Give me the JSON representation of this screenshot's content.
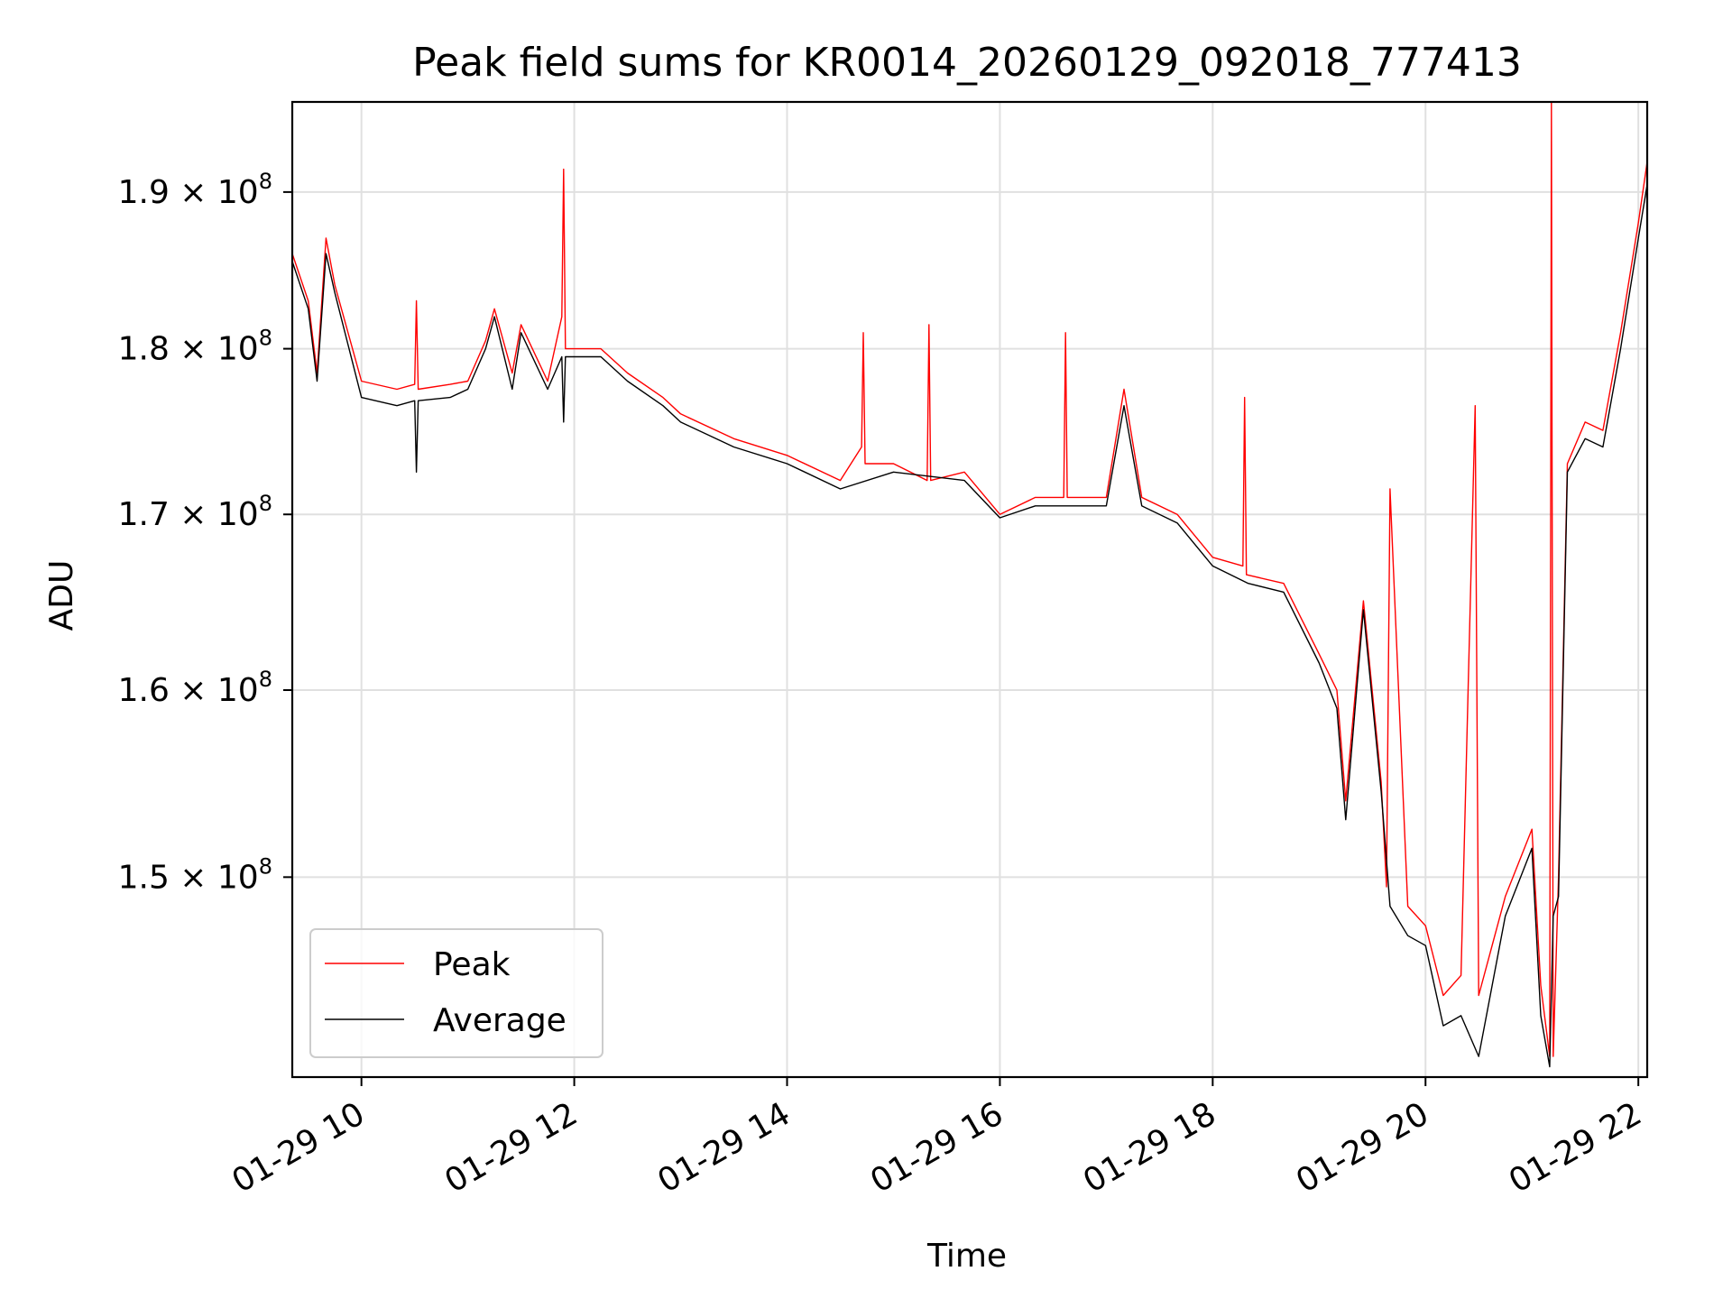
{
  "chart_data": {
    "type": "line",
    "title": "Peak field sums for KR0014_20260129_092018_777413",
    "xlabel": "Time",
    "ylabel": "ADU",
    "y_scale": "log",
    "grid": true,
    "legend_position": "lower-left",
    "xlim": [
      "2026-01-29 09:21",
      "2026-01-29 22:05"
    ],
    "ylim": [
      140000000,
      196000000
    ],
    "x_ticks": [
      {
        "value": "2026-01-29 10:00",
        "label": "01-29 10"
      },
      {
        "value": "2026-01-29 12:00",
        "label": "01-29 12"
      },
      {
        "value": "2026-01-29 14:00",
        "label": "01-29 14"
      },
      {
        "value": "2026-01-29 16:00",
        "label": "01-29 16"
      },
      {
        "value": "2026-01-29 18:00",
        "label": "01-29 18"
      },
      {
        "value": "2026-01-29 20:00",
        "label": "01-29 20"
      },
      {
        "value": "2026-01-29 22:00",
        "label": "01-29 22"
      }
    ],
    "y_ticks": [
      {
        "value": 150000000,
        "mantissa": "1.5",
        "exponent": "8"
      },
      {
        "value": 160000000,
        "mantissa": "1.6",
        "exponent": "8"
      },
      {
        "value": 170000000,
        "mantissa": "1.7",
        "exponent": "8"
      },
      {
        "value": 180000000,
        "mantissa": "1.8",
        "exponent": "8"
      },
      {
        "value": 190000000,
        "mantissa": "1.9",
        "exponent": "8"
      }
    ],
    "series": [
      {
        "name": "Peak",
        "color": "#ff0000",
        "x": [
          "2026-01-29 09:21",
          "2026-01-29 09:30",
          "2026-01-29 09:35",
          "2026-01-29 09:40",
          "2026-01-29 09:45",
          "2026-01-29 10:00",
          "2026-01-29 10:20",
          "2026-01-29 10:30",
          "2026-01-29 10:31",
          "2026-01-29 10:32",
          "2026-01-29 10:50",
          "2026-01-29 11:00",
          "2026-01-29 11:10",
          "2026-01-29 11:15",
          "2026-01-29 11:25",
          "2026-01-29 11:30",
          "2026-01-29 11:45",
          "2026-01-29 11:53",
          "2026-01-29 11:54",
          "2026-01-29 11:55",
          "2026-01-29 12:15",
          "2026-01-29 12:30",
          "2026-01-29 12:50",
          "2026-01-29 13:00",
          "2026-01-29 13:30",
          "2026-01-29 14:00",
          "2026-01-29 14:30",
          "2026-01-29 14:42",
          "2026-01-29 14:43",
          "2026-01-29 14:44",
          "2026-01-29 15:00",
          "2026-01-29 15:19",
          "2026-01-29 15:20",
          "2026-01-29 15:21",
          "2026-01-29 15:40",
          "2026-01-29 16:00",
          "2026-01-29 16:20",
          "2026-01-29 16:36",
          "2026-01-29 16:37",
          "2026-01-29 16:38",
          "2026-01-29 17:00",
          "2026-01-29 17:10",
          "2026-01-29 17:20",
          "2026-01-29 17:40",
          "2026-01-29 18:00",
          "2026-01-29 18:17",
          "2026-01-29 18:18",
          "2026-01-29 18:19",
          "2026-01-29 18:40",
          "2026-01-29 19:00",
          "2026-01-29 19:10",
          "2026-01-29 19:15",
          "2026-01-29 19:25",
          "2026-01-29 19:35",
          "2026-01-29 19:38",
          "2026-01-29 19:40",
          "2026-01-29 19:50",
          "2026-01-29 20:00",
          "2026-01-29 20:10",
          "2026-01-29 20:20",
          "2026-01-29 20:28",
          "2026-01-29 20:30",
          "2026-01-29 20:45",
          "2026-01-29 21:00",
          "2026-01-29 21:05",
          "2026-01-29 21:10",
          "2026-01-29 21:11",
          "2026-01-29 21:12",
          "2026-01-29 21:15",
          "2026-01-29 21:20",
          "2026-01-29 21:30",
          "2026-01-29 21:40",
          "2026-01-29 21:50",
          "2026-01-29 22:00",
          "2026-01-29 22:05"
        ],
        "values": [
          186000000,
          183000000,
          178500000,
          187000000,
          184000000,
          178000000,
          177500000,
          177800000,
          183000000,
          177500000,
          177800000,
          178000000,
          180500000,
          182500000,
          178500000,
          181500000,
          178000000,
          182000000,
          191500000,
          180000000,
          180000000,
          178500000,
          177000000,
          176000000,
          174500000,
          173500000,
          172000000,
          174000000,
          181000000,
          173000000,
          173000000,
          172000000,
          181500000,
          172000000,
          172500000,
          170000000,
          171000000,
          171000000,
          181000000,
          171000000,
          171000000,
          177500000,
          171000000,
          170000000,
          167500000,
          167000000,
          177000000,
          166500000,
          166000000,
          162000000,
          160000000,
          154000000,
          165000000,
          155000000,
          149500000,
          171500000,
          148500000,
          147500000,
          144000000,
          145000000,
          176500000,
          144000000,
          149000000,
          152500000,
          144500000,
          141000000,
          196000000,
          141000000,
          150000000,
          173000000,
          175500000,
          175000000,
          181000000,
          188000000,
          192000000
        ]
      },
      {
        "name": "Average",
        "color": "#000000",
        "x": [
          "2026-01-29 09:21",
          "2026-01-29 09:30",
          "2026-01-29 09:35",
          "2026-01-29 09:40",
          "2026-01-29 09:45",
          "2026-01-29 10:00",
          "2026-01-29 10:20",
          "2026-01-29 10:30",
          "2026-01-29 10:31",
          "2026-01-29 10:32",
          "2026-01-29 10:50",
          "2026-01-29 11:00",
          "2026-01-29 11:10",
          "2026-01-29 11:15",
          "2026-01-29 11:25",
          "2026-01-29 11:30",
          "2026-01-29 11:45",
          "2026-01-29 11:53",
          "2026-01-29 11:54",
          "2026-01-29 11:55",
          "2026-01-29 12:15",
          "2026-01-29 12:30",
          "2026-01-29 12:50",
          "2026-01-29 13:00",
          "2026-01-29 13:30",
          "2026-01-29 14:00",
          "2026-01-29 14:30",
          "2026-01-29 15:00",
          "2026-01-29 15:40",
          "2026-01-29 16:00",
          "2026-01-29 16:20",
          "2026-01-29 16:40",
          "2026-01-29 17:00",
          "2026-01-29 17:10",
          "2026-01-29 17:20",
          "2026-01-29 17:40",
          "2026-01-29 18:00",
          "2026-01-29 18:20",
          "2026-01-29 18:40",
          "2026-01-29 19:00",
          "2026-01-29 19:10",
          "2026-01-29 19:15",
          "2026-01-29 19:25",
          "2026-01-29 19:35",
          "2026-01-29 19:40",
          "2026-01-29 19:50",
          "2026-01-29 20:00",
          "2026-01-29 20:10",
          "2026-01-29 20:20",
          "2026-01-29 20:30",
          "2026-01-29 20:45",
          "2026-01-29 21:00",
          "2026-01-29 21:05",
          "2026-01-29 21:10",
          "2026-01-29 21:12",
          "2026-01-29 21:15",
          "2026-01-29 21:20",
          "2026-01-29 21:30",
          "2026-01-29 21:40",
          "2026-01-29 21:50",
          "2026-01-29 22:00",
          "2026-01-29 22:05"
        ],
        "values": [
          185500000,
          182500000,
          178000000,
          186000000,
          183500000,
          177000000,
          176500000,
          176800000,
          172500000,
          176800000,
          177000000,
          177500000,
          180000000,
          182000000,
          177500000,
          181000000,
          177500000,
          179500000,
          175500000,
          179500000,
          179500000,
          178000000,
          176500000,
          175500000,
          174000000,
          173000000,
          171500000,
          172500000,
          172000000,
          169800000,
          170500000,
          170500000,
          170500000,
          176500000,
          170500000,
          169500000,
          167000000,
          166000000,
          165500000,
          161500000,
          159000000,
          153000000,
          164500000,
          154500000,
          148500000,
          147000000,
          146500000,
          142500000,
          143000000,
          141000000,
          148000000,
          151500000,
          143000000,
          140500000,
          148000000,
          149000000,
          172500000,
          174500000,
          174000000,
          180000000,
          187000000,
          190500000
        ]
      }
    ]
  }
}
